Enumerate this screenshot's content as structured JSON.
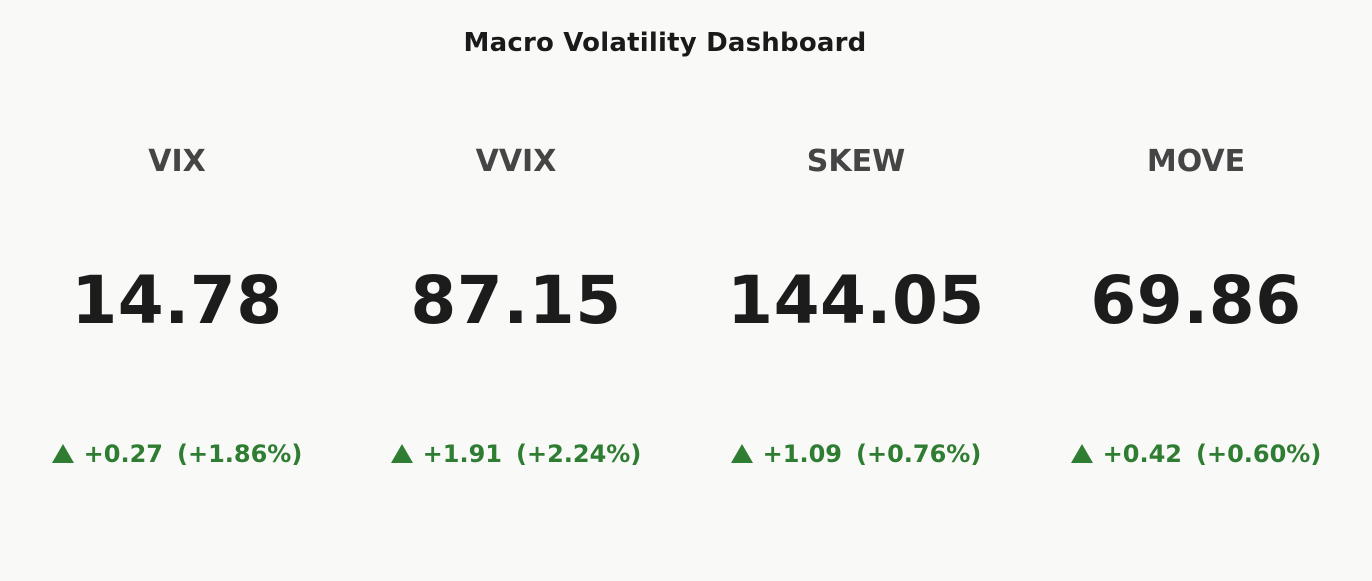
{
  "title": "Macro Volatility Dashboard",
  "colors": {
    "background": "#f9f9f7",
    "positive": "#2e7d32",
    "label": "#454545",
    "value": "#1c1c1c"
  },
  "chart_data": {
    "type": "table",
    "title": "Macro Volatility Dashboard",
    "metrics": [
      {
        "name": "VIX",
        "value": "14.78",
        "change": "+0.27",
        "change_pct": "(+1.86%)",
        "direction": "up"
      },
      {
        "name": "VVIX",
        "value": "87.15",
        "change": "+1.91",
        "change_pct": "(+2.24%)",
        "direction": "up"
      },
      {
        "name": "SKEW",
        "value": "144.05",
        "change": "+1.09",
        "change_pct": "(+0.76%)",
        "direction": "up"
      },
      {
        "name": "MOVE",
        "value": "69.86",
        "change": "+0.42",
        "change_pct": "(+0.60%)",
        "direction": "up"
      }
    ]
  }
}
